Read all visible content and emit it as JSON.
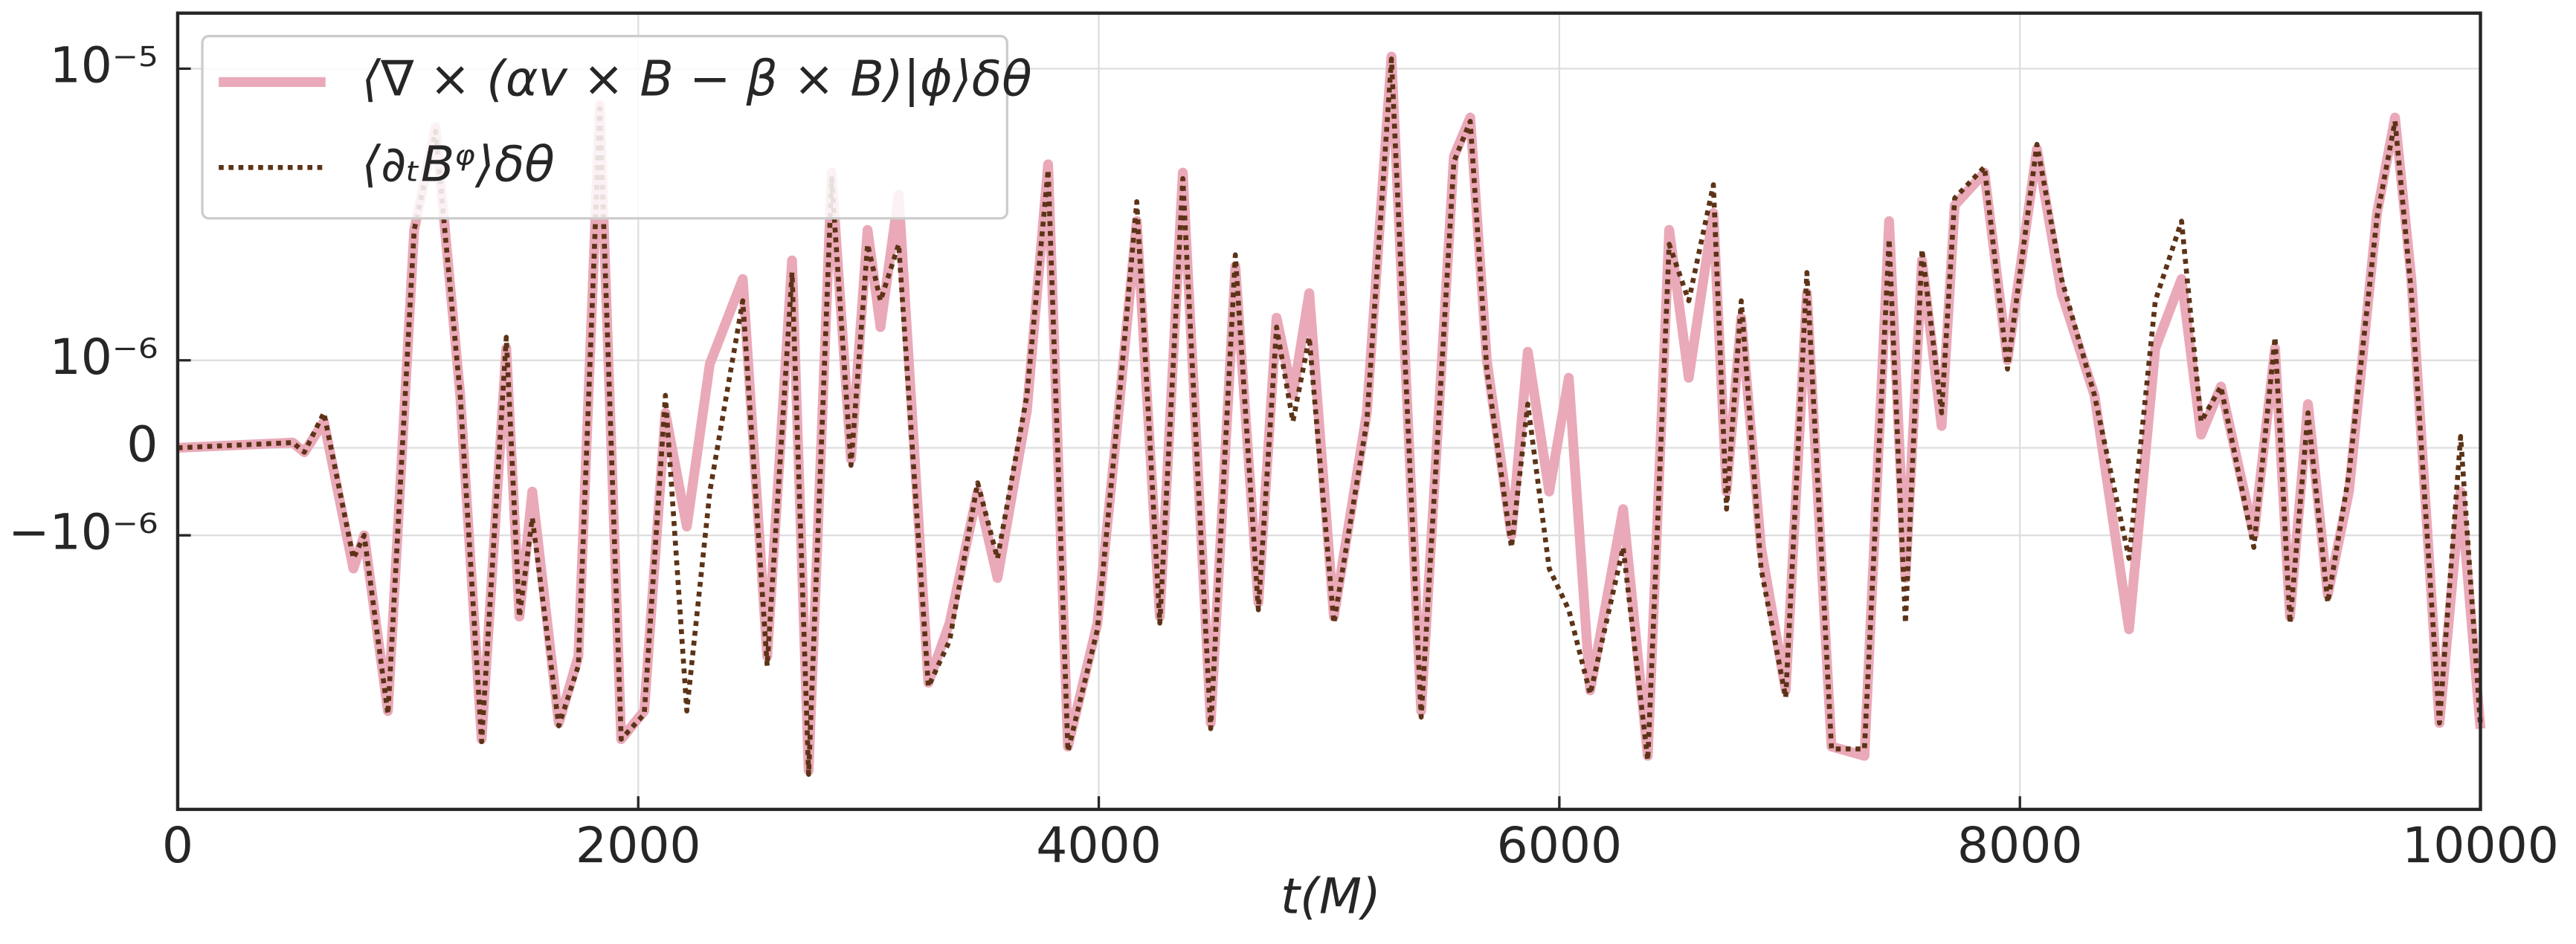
{
  "chart_data": {
    "type": "line",
    "xlabel": "t(M)",
    "x": [
      0,
      500,
      550,
      635,
      763,
      810,
      913,
      1027,
      1120,
      1227,
      1320,
      1427,
      1484,
      1540,
      1655,
      1740,
      1833,
      1926,
      2026,
      2118,
      2211,
      2311,
      2454,
      2560,
      2668,
      2740,
      2840,
      2924,
      2996,
      3052,
      3131,
      3260,
      3352,
      3474,
      3560,
      3688,
      3780,
      3866,
      3994,
      4080,
      4165,
      4265,
      4365,
      4486,
      4593,
      4693,
      4772,
      4843,
      4914,
      5021,
      5164,
      5271,
      5400,
      5542,
      5613,
      5685,
      5792,
      5863,
      5956,
      6041,
      6134,
      6277,
      6384,
      6477,
      6562,
      6669,
      6726,
      6790,
      6876,
      6983,
      7075,
      7182,
      7325,
      7432,
      7503,
      7575,
      7660,
      7717,
      7846,
      7946,
      8074,
      8181,
      8324,
      8474,
      8588,
      8702,
      8787,
      8873,
      9016,
      9108,
      9173,
      9251,
      9337,
      9429,
      9551,
      9629,
      9700,
      9822,
      9914,
      10000
    ],
    "series": [
      {
        "name": "⟨∇ × (αv × B − β × B)|ϕ⟩δθ",
        "color": "#eaa9b8",
        "style": "solid",
        "values": [
          0,
          6e-08,
          -5e-08,
          3e-07,
          -1.3e-06,
          -1e-06,
          -4e-06,
          2.8e-06,
          6.3e-06,
          6e-07,
          -5e-06,
          1.1e-06,
          -1.9e-06,
          -5e-07,
          -4.4e-06,
          -2.6e-06,
          7.5e-06,
          -5e-06,
          -4e-06,
          4e-07,
          -9e-07,
          9.6e-07,
          1.9e-06,
          -2.6e-06,
          2.2e-06,
          -6.4e-06,
          4.4e-06,
          -1.3e-07,
          2.8e-06,
          1.3e-06,
          3.7e-06,
          -3.2e-06,
          -2e-06,
          -5e-07,
          -1.4e-06,
          4.3e-07,
          4.7e-06,
          -5.3e-06,
          -2e-06,
          2.5e-07,
          3e-06,
          -1.9e-06,
          4.4e-06,
          -4.4e-06,
          2.1e-06,
          -1.7e-06,
          1.4e-06,
          6e-07,
          1.7e-06,
          -1.9e-06,
          4e-07,
          1.1e-05,
          -4e-06,
          5e-06,
          6.8e-06,
          1e-06,
          -1e-06,
          1.07e-06,
          -5e-07,
          8e-07,
          -3.4e-06,
          -7e-07,
          -5.7e-06,
          2.8e-06,
          8e-07,
          3.2e-06,
          -5e-07,
          1.4e-06,
          -1.1e-06,
          -3.4e-06,
          1.7e-06,
          -5.3e-06,
          -5.7e-06,
          3e-06,
          -1.4e-06,
          2.2e-06,
          2.5e-07,
          3.4e-06,
          4.4e-06,
          1e-06,
          5.3e-06,
          1.7e-06,
          6e-07,
          -2.1e-06,
          1.1e-06,
          1.9e-06,
          1.5e-07,
          7e-07,
          -1e-06,
          1.1e-06,
          -1.9e-06,
          5e-07,
          -1.6e-06,
          -5e-07,
          3.2e-06,
          6.8e-06,
          1.9e-06,
          -4.4e-06,
          -5e-07,
          -4.6e-06
        ]
      },
      {
        "name": "⟨∂ₜBᵠ⟩δθ",
        "color": "#5c3317",
        "style": "dotted",
        "values": [
          0,
          6e-08,
          -5e-08,
          4e-07,
          -1.2e-06,
          -1e-06,
          -4.1e-06,
          2.8e-06,
          6.1e-06,
          6e-07,
          -5.1e-06,
          1.2e-06,
          -1.9e-06,
          -8e-07,
          -4.5e-06,
          -2.8e-06,
          7.3e-06,
          -5e-06,
          -4.1e-06,
          6e-07,
          -4e-06,
          -5e-07,
          1.6e-06,
          -2.8e-06,
          2e-06,
          -6.6e-06,
          4.2e-06,
          -2e-07,
          2.5e-06,
          1.6e-06,
          2.5e-06,
          -3.3e-06,
          -2.3e-06,
          -4e-07,
          -1.2e-06,
          6e-07,
          4.5e-06,
          -5.5e-06,
          -2.1e-06,
          3e-07,
          3.5e-06,
          -2e-06,
          4.2e-06,
          -4.6e-06,
          2.3e-06,
          -1.8e-06,
          1.3e-06,
          3e-07,
          1.2e-06,
          -2e-06,
          3e-07,
          1.08e-05,
          -4.2e-06,
          4.8e-06,
          6.6e-06,
          9e-07,
          -1.1e-06,
          5e-07,
          -1.3e-06,
          -1.8e-06,
          -3.5e-06,
          -1.1e-06,
          -5.9e-06,
          2.5e-06,
          1.6e-06,
          4e-06,
          -7e-07,
          1.6e-06,
          -1.3e-06,
          -3.6e-06,
          2e-06,
          -5.4e-06,
          -5.4e-06,
          2.6e-06,
          -2e-06,
          2.4e-06,
          4e-07,
          3.6e-06,
          4.6e-06,
          9e-07,
          5.5e-06,
          1.9e-06,
          6e-07,
          -1.2e-06,
          1.6e-06,
          3e-06,
          3e-07,
          7e-07,
          -1.1e-06,
          1.2e-06,
          -2e-06,
          4e-07,
          -1.7e-06,
          -3e-07,
          3.1e-06,
          6.6e-06,
          1.7e-06,
          -4.4e-06,
          1.3e-07,
          -4.5e-06
        ]
      }
    ],
    "xlim": [
      0,
      10000
    ],
    "xticks": [
      0,
      2000,
      4000,
      6000,
      8000,
      10000
    ],
    "yscale": "symlog",
    "linthresh": 1e-06,
    "linscale": 0.3,
    "ylim": [
      -8.7e-06,
      1.55e-05
    ],
    "yticks": [
      {
        "value": -1e-06,
        "label": "−10⁻⁶"
      },
      0,
      {
        "value": 1e-06,
        "label": "10⁻⁶"
      },
      {
        "value": 1e-05,
        "label": "10⁻⁵"
      }
    ],
    "grid": true,
    "legend": "upper left"
  }
}
